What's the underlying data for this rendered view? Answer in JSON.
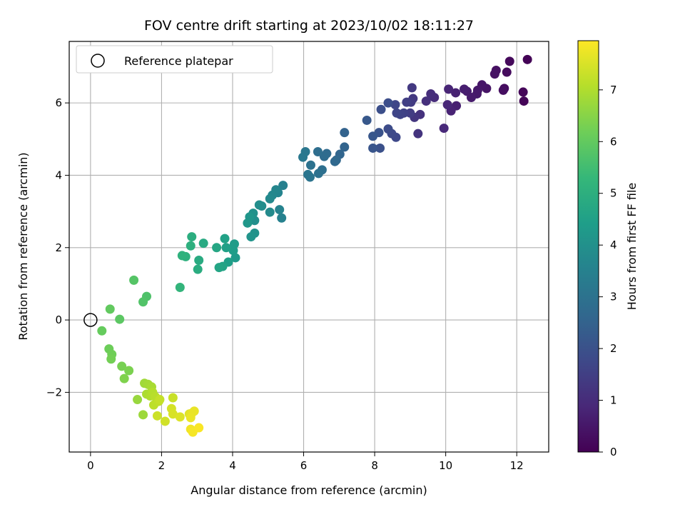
{
  "chart_data": {
    "type": "scatter",
    "title": "FOV centre drift starting at 2023/10/02 18:11:27",
    "xlabel": "Angular distance from reference (arcmin)",
    "ylabel": "Rotation from reference (arcmin)",
    "xlim": [
      -0.6,
      12.9
    ],
    "ylim": [
      -3.65,
      7.7
    ],
    "x_ticks": [
      0,
      2,
      4,
      6,
      8,
      10,
      12
    ],
    "y_ticks": [
      -2,
      0,
      2,
      4,
      6
    ],
    "x_tick_labels": [
      "0",
      "2",
      "4",
      "6",
      "8",
      "10",
      "12"
    ],
    "y_tick_labels": [
      "−2",
      "0",
      "2",
      "4",
      "6"
    ],
    "grid": true,
    "legend": {
      "position": "top-left",
      "label": "Reference platepar"
    },
    "reference_point": [
      0,
      0
    ],
    "colorbar": {
      "label": "Hours from first FF file",
      "range": [
        0,
        7.95
      ],
      "ticks": [
        0,
        1,
        2,
        3,
        4,
        5,
        6,
        7
      ],
      "tick_labels": [
        "0",
        "1",
        "2",
        "3",
        "4",
        "5",
        "6",
        "7"
      ],
      "colormap": "viridis",
      "stops": [
        "#440154",
        "#482878",
        "#3e4989",
        "#31688e",
        "#26828e",
        "#1f9e89",
        "#35b779",
        "#6ece58",
        "#b5de2b",
        "#fde725"
      ]
    },
    "points": [
      [
        12.3,
        7.2,
        0.05
      ],
      [
        12.2,
        6.05,
        0.08
      ],
      [
        12.18,
        6.3,
        0.12
      ],
      [
        11.8,
        7.15,
        0.18
      ],
      [
        11.72,
        6.85,
        0.22
      ],
      [
        11.65,
        6.4,
        0.26
      ],
      [
        11.62,
        6.35,
        0.3
      ],
      [
        11.42,
        6.9,
        0.34
      ],
      [
        11.38,
        6.8,
        0.38
      ],
      [
        11.15,
        6.4,
        0.42
      ],
      [
        11.02,
        6.5,
        0.46
      ],
      [
        10.9,
        6.35,
        0.5
      ],
      [
        10.88,
        6.25,
        0.54
      ],
      [
        10.72,
        6.15,
        0.58
      ],
      [
        10.6,
        6.32,
        0.62
      ],
      [
        10.52,
        6.38,
        0.66
      ],
      [
        10.3,
        5.92,
        0.7
      ],
      [
        10.28,
        6.28,
        0.74
      ],
      [
        10.15,
        5.78,
        0.78
      ],
      [
        10.08,
        6.38,
        0.82
      ],
      [
        10.05,
        5.95,
        0.86
      ],
      [
        9.95,
        5.3,
        0.92
      ],
      [
        9.68,
        6.15,
        1.0
      ],
      [
        9.58,
        6.25,
        1.05
      ],
      [
        9.45,
        6.05,
        1.1
      ],
      [
        9.28,
        5.68,
        1.15
      ],
      [
        9.22,
        5.15,
        1.2
      ],
      [
        9.12,
        5.6,
        1.25
      ],
      [
        9.08,
        6.12,
        1.3
      ],
      [
        9.05,
        6.42,
        1.35
      ],
      [
        9.02,
        6.02,
        1.4
      ],
      [
        9.0,
        5.72,
        1.45
      ],
      [
        8.9,
        6.02,
        1.5
      ],
      [
        8.82,
        5.72,
        1.55
      ],
      [
        8.72,
        5.68,
        1.6
      ],
      [
        8.62,
        5.72,
        1.65
      ],
      [
        8.58,
        5.95,
        1.7
      ],
      [
        8.6,
        5.05,
        1.75
      ],
      [
        8.48,
        5.15,
        1.8
      ],
      [
        8.38,
        5.28,
        1.85
      ],
      [
        8.38,
        6.0,
        1.9
      ],
      [
        8.18,
        5.82,
        1.95
      ],
      [
        8.15,
        4.75,
        2.0
      ],
      [
        8.12,
        5.18,
        2.05
      ],
      [
        7.95,
        4.75,
        2.1
      ],
      [
        7.95,
        5.08,
        2.15
      ],
      [
        7.78,
        5.52,
        2.2
      ],
      [
        7.15,
        5.18,
        2.5
      ],
      [
        7.15,
        4.78,
        2.55
      ],
      [
        7.02,
        4.58,
        2.6
      ],
      [
        6.92,
        4.42,
        2.65
      ],
      [
        6.88,
        4.38,
        2.7
      ],
      [
        6.65,
        4.6,
        2.75
      ],
      [
        6.58,
        4.52,
        2.8
      ],
      [
        6.4,
        4.65,
        2.85
      ],
      [
        6.52,
        4.15,
        2.9
      ],
      [
        6.42,
        4.05,
        2.95
      ],
      [
        6.2,
        4.28,
        3.0
      ],
      [
        6.18,
        3.95,
        3.05
      ],
      [
        6.12,
        4.02,
        3.1
      ],
      [
        6.05,
        4.65,
        3.15
      ],
      [
        5.98,
        4.5,
        3.2
      ],
      [
        5.42,
        3.72,
        3.45
      ],
      [
        5.38,
        2.82,
        3.5
      ],
      [
        5.32,
        3.05,
        3.55
      ],
      [
        5.28,
        3.52,
        3.6
      ],
      [
        5.22,
        3.6,
        3.65
      ],
      [
        5.12,
        3.45,
        3.7
      ],
      [
        5.05,
        3.35,
        3.75
      ],
      [
        5.05,
        2.98,
        3.8
      ],
      [
        4.82,
        3.15,
        3.85
      ],
      [
        4.75,
        3.18,
        3.9
      ],
      [
        4.62,
        2.75,
        3.95
      ],
      [
        4.58,
        2.95,
        4.0
      ],
      [
        4.62,
        2.4,
        4.05
      ],
      [
        4.52,
        2.3,
        4.1
      ],
      [
        4.48,
        2.85,
        4.15
      ],
      [
        4.42,
        2.68,
        4.2
      ],
      [
        4.08,
        1.72,
        4.3
      ],
      [
        4.05,
        2.1,
        4.35
      ],
      [
        4.02,
        1.92,
        4.4
      ],
      [
        3.88,
        1.6,
        4.45
      ],
      [
        3.82,
        2.0,
        4.5
      ],
      [
        3.78,
        2.25,
        4.55
      ],
      [
        3.72,
        1.48,
        4.6
      ],
      [
        3.62,
        1.45,
        4.65
      ],
      [
        3.55,
        2.0,
        4.7
      ],
      [
        3.18,
        2.12,
        4.8
      ],
      [
        3.05,
        1.65,
        4.85
      ],
      [
        3.02,
        1.4,
        4.9
      ],
      [
        2.85,
        2.3,
        4.95
      ],
      [
        2.82,
        2.05,
        5.0
      ],
      [
        2.68,
        1.75,
        5.05
      ],
      [
        2.58,
        1.78,
        5.1
      ],
      [
        2.52,
        0.9,
        5.2
      ],
      [
        1.58,
        0.65,
        5.7
      ],
      [
        1.48,
        0.5,
        5.75
      ],
      [
        1.22,
        1.1,
        5.8
      ],
      [
        0.82,
        0.02,
        5.9
      ],
      [
        0.55,
        0.3,
        6.0
      ],
      [
        0.32,
        -0.3,
        6.05
      ],
      [
        0.52,
        -0.8,
        6.15
      ],
      [
        0.6,
        -0.95,
        6.2
      ],
      [
        0.58,
        -1.08,
        6.25
      ],
      [
        0.88,
        -1.28,
        6.3
      ],
      [
        1.08,
        -1.4,
        6.35
      ],
      [
        0.95,
        -1.62,
        6.4
      ],
      [
        1.32,
        -2.2,
        6.7
      ],
      [
        1.48,
        -2.62,
        6.75
      ],
      [
        1.52,
        -1.75,
        6.8
      ],
      [
        1.62,
        -1.78,
        6.85
      ],
      [
        1.72,
        -1.85,
        6.9
      ],
      [
        1.58,
        -2.05,
        6.95
      ],
      [
        1.68,
        -2.1,
        7.0
      ],
      [
        1.75,
        -2.0,
        7.05
      ],
      [
        1.82,
        -2.12,
        7.1
      ],
      [
        1.78,
        -2.35,
        7.15
      ],
      [
        1.92,
        -2.25,
        7.2
      ],
      [
        1.95,
        -2.2,
        7.25
      ],
      [
        2.32,
        -2.15,
        7.3
      ],
      [
        1.88,
        -2.65,
        7.35
      ],
      [
        2.1,
        -2.8,
        7.4
      ],
      [
        2.28,
        -2.45,
        7.45
      ],
      [
        2.32,
        -2.6,
        7.5
      ],
      [
        2.52,
        -2.68,
        7.55
      ],
      [
        2.78,
        -2.6,
        7.6
      ],
      [
        2.85,
        -2.58,
        7.65
      ],
      [
        2.92,
        -2.52,
        7.7
      ],
      [
        2.82,
        -2.7,
        7.72
      ],
      [
        2.82,
        -3.02,
        7.8
      ],
      [
        2.88,
        -3.1,
        7.85
      ],
      [
        3.05,
        -2.98,
        7.9
      ]
    ]
  }
}
